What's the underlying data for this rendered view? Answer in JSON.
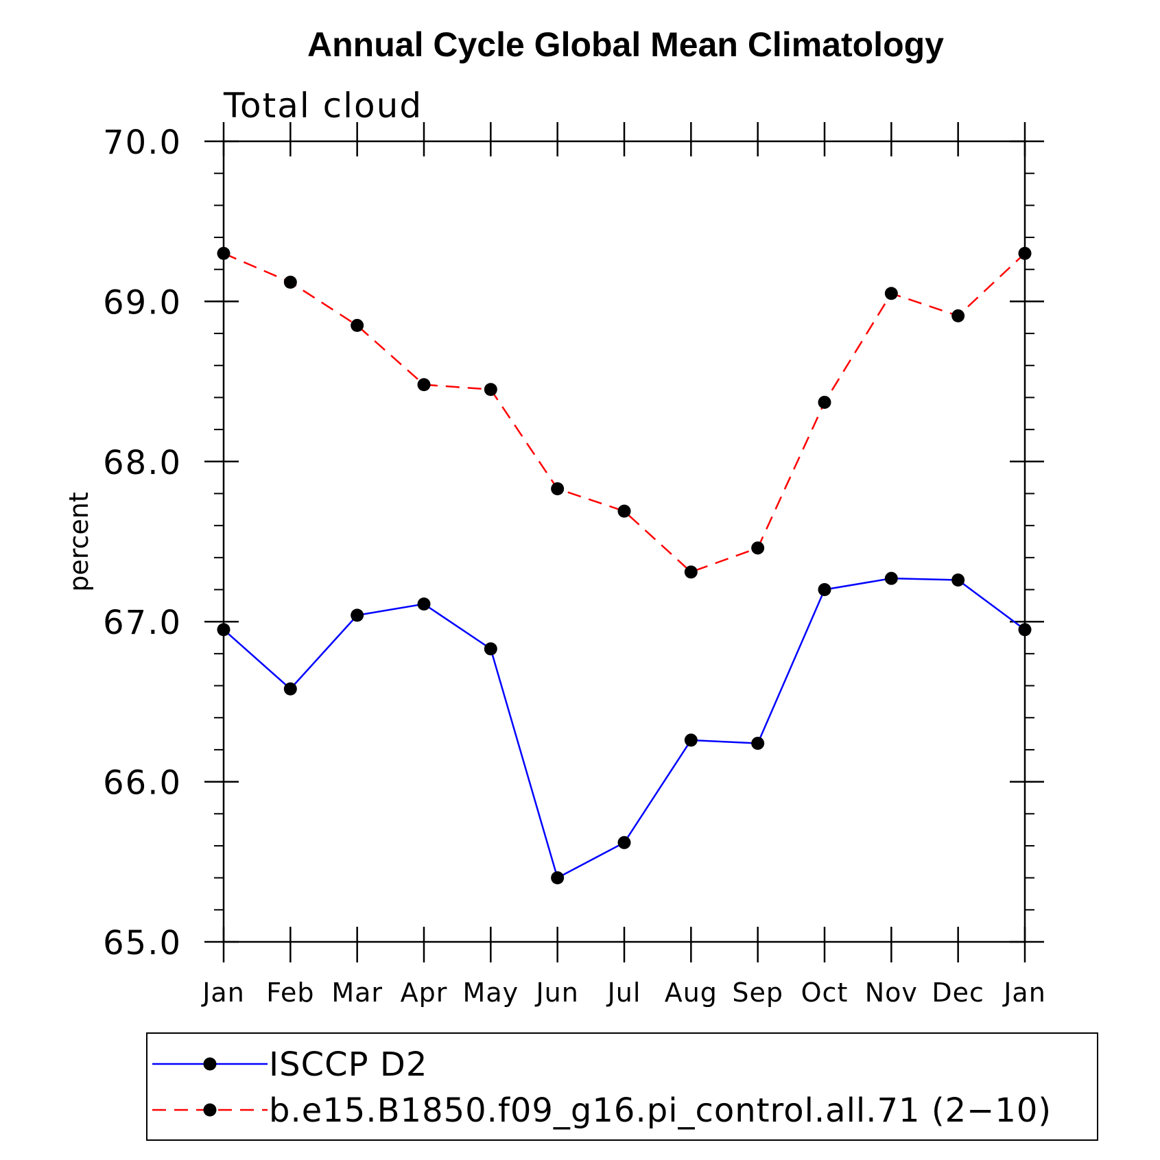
{
  "chart_data": {
    "type": "line",
    "title": "Annual Cycle Global Mean Climatology",
    "subtitle": "Total cloud",
    "xlabel": "",
    "ylabel": "percent",
    "categories": [
      "Jan",
      "Feb",
      "Mar",
      "Apr",
      "May",
      "Jun",
      "Jul",
      "Aug",
      "Sep",
      "Oct",
      "Nov",
      "Dec",
      "Jan"
    ],
    "ylim": [
      65.0,
      70.0
    ],
    "yticks": [
      "65.0",
      "66.0",
      "67.0",
      "68.0",
      "69.0",
      "70.0"
    ],
    "series": [
      {
        "name": "ISCCP D2",
        "color": "#0000ff",
        "dash": "solid",
        "values": [
          66.95,
          66.58,
          67.04,
          67.11,
          66.83,
          65.4,
          65.62,
          66.26,
          66.24,
          67.2,
          67.27,
          67.26,
          66.95
        ]
      },
      {
        "name": "b.e15.B1850.f09_g16.pi_control.all.71 (2−10)",
        "color": "#ff0000",
        "dash": "dashed",
        "values": [
          69.3,
          69.12,
          68.85,
          68.48,
          68.45,
          67.83,
          67.69,
          67.31,
          67.46,
          68.37,
          69.05,
          68.91,
          69.3
        ]
      }
    ],
    "legend_position": "bottom",
    "grid": false
  }
}
